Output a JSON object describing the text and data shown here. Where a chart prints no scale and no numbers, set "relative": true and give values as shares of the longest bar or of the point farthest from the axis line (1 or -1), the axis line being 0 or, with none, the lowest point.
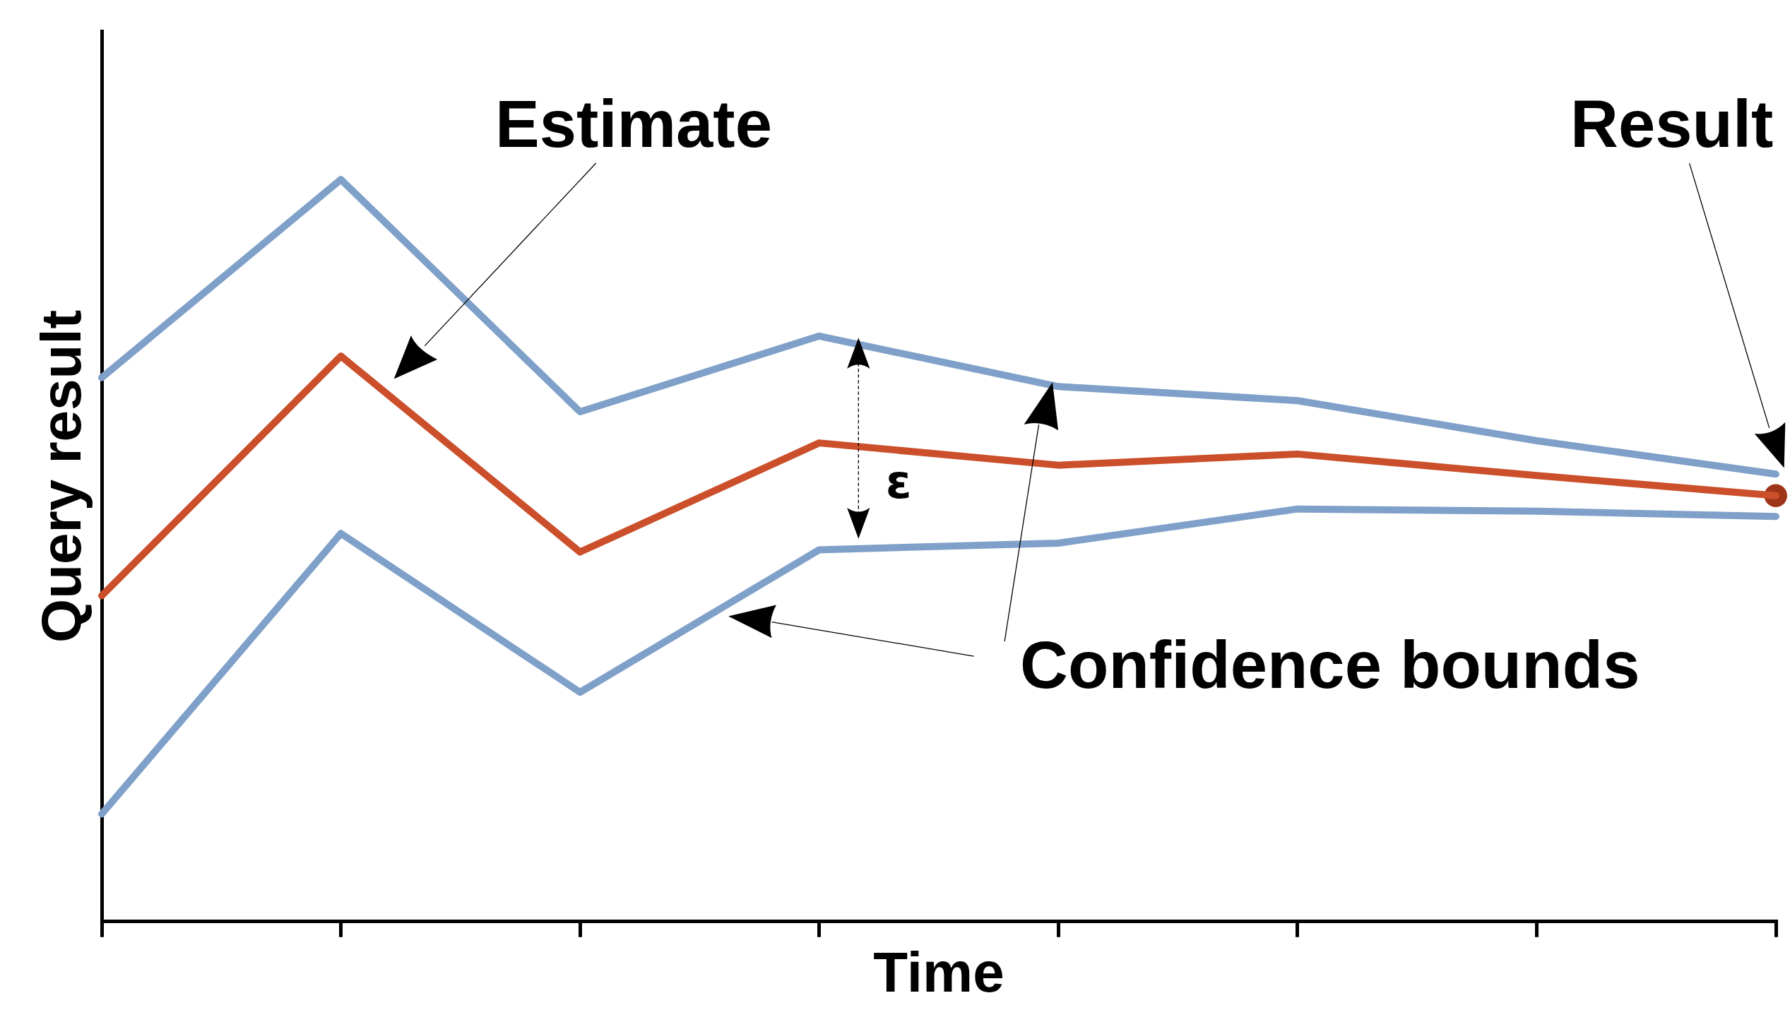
{
  "chart_data": {
    "type": "line",
    "relative": true,
    "xlabel": "Time",
    "ylabel": "Query result",
    "categories": [
      null,
      null,
      null,
      null,
      null,
      null,
      null,
      null
    ],
    "series": [
      {
        "color": "#7fa0c8",
        "values": [
          0.733,
          1,
          0.687,
          0.789,
          0.721,
          0.702,
          0.648,
          0.603
        ]
      },
      {
        "color": "#cb4f2b",
        "values": [
          0.439,
          0.762,
          0.498,
          0.645,
          0.615,
          0.63,
          0.601,
          0.574
        ]
      },
      {
        "color": "#7fa0c8",
        "values": [
          0.145,
          0.523,
          0.309,
          0.501,
          0.51,
          0.556,
          0.553,
          0.546
        ]
      }
    ],
    "annotations": [
      "Estimate",
      "Result",
      "ε",
      "Confidence bounds"
    ],
    "marker": "none",
    "line_style": "solid",
    "grid": false,
    "legend": false
  }
}
